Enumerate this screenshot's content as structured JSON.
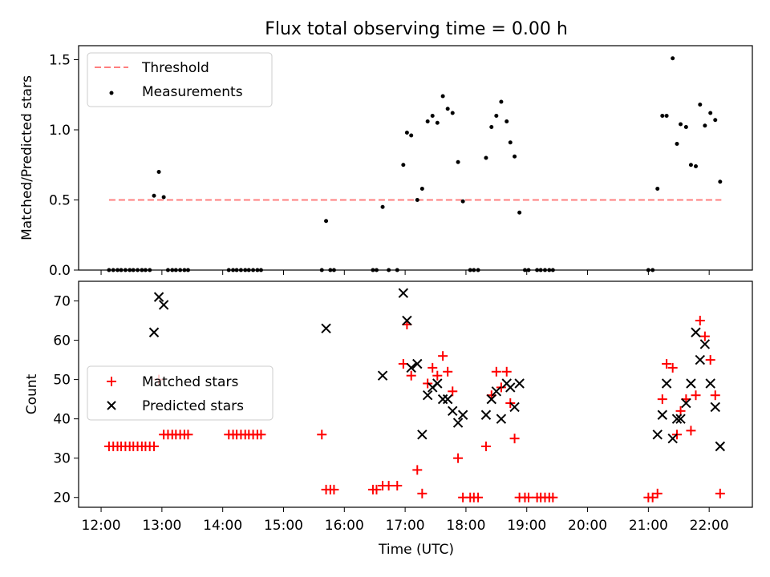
{
  "chart_data": {
    "title": "Flux total observing time = 0.00 h",
    "xlabel": "Time (UTC)",
    "x_ticks": [
      {
        "v": 12,
        "label": "12:00"
      },
      {
        "v": 13,
        "label": "13:00"
      },
      {
        "v": 14,
        "label": "14:00"
      },
      {
        "v": 15,
        "label": "15:00"
      },
      {
        "v": 16,
        "label": "16:00"
      },
      {
        "v": 17,
        "label": "17:00"
      },
      {
        "v": 18,
        "label": "18:00"
      },
      {
        "v": 19,
        "label": "19:00"
      },
      {
        "v": 20,
        "label": "20:00"
      },
      {
        "v": 21,
        "label": "21:00"
      },
      {
        "v": 22,
        "label": "22:00"
      }
    ],
    "xlim": [
      11.63,
      22.71
    ],
    "panels": [
      {
        "type": "scatter",
        "ylabel": "Matched/Predicted stars",
        "ylim": [
          0,
          1.6
        ],
        "yticks": [
          {
            "v": 0,
            "label": "0.0"
          },
          {
            "v": 0.5,
            "label": "0.5"
          },
          {
            "v": 1.0,
            "label": "1.0"
          },
          {
            "v": 1.5,
            "label": "1.5"
          }
        ],
        "legend": {
          "position": "top-left",
          "threshold_label": "Threshold",
          "measurements_label": "Measurements"
        },
        "threshold": {
          "y": 0.5,
          "x_start": 12.13,
          "x_end": 22.2,
          "color": "#ff7f7f"
        },
        "measurements": {
          "color": "#000000",
          "points": [
            [
              12.13,
              0
            ],
            [
              12.2,
              0
            ],
            [
              12.27,
              0
            ],
            [
              12.33,
              0
            ],
            [
              12.4,
              0
            ],
            [
              12.47,
              0
            ],
            [
              12.53,
              0
            ],
            [
              12.6,
              0
            ],
            [
              12.67,
              0
            ],
            [
              12.73,
              0
            ],
            [
              12.8,
              0
            ],
            [
              12.87,
              0.53
            ],
            [
              12.95,
              0.7
            ],
            [
              13.03,
              0.52
            ],
            [
              13.1,
              0
            ],
            [
              13.17,
              0
            ],
            [
              13.23,
              0
            ],
            [
              13.3,
              0
            ],
            [
              13.37,
              0
            ],
            [
              13.43,
              0
            ],
            [
              14.1,
              0
            ],
            [
              14.17,
              0
            ],
            [
              14.23,
              0
            ],
            [
              14.3,
              0
            ],
            [
              14.37,
              0
            ],
            [
              14.43,
              0
            ],
            [
              14.5,
              0
            ],
            [
              14.57,
              0
            ],
            [
              14.63,
              0
            ],
            [
              15.63,
              0
            ],
            [
              15.7,
              0.35
            ],
            [
              15.77,
              0
            ],
            [
              15.83,
              0
            ],
            [
              16.47,
              0
            ],
            [
              16.53,
              0
            ],
            [
              16.63,
              0.45
            ],
            [
              16.73,
              0
            ],
            [
              16.87,
              0
            ],
            [
              16.97,
              0.75
            ],
            [
              17.03,
              0.98
            ],
            [
              17.1,
              0.96
            ],
            [
              17.2,
              0.5
            ],
            [
              17.28,
              0.58
            ],
            [
              17.37,
              1.06
            ],
            [
              17.45,
              1.1
            ],
            [
              17.53,
              1.05
            ],
            [
              17.62,
              1.24
            ],
            [
              17.7,
              1.15
            ],
            [
              17.78,
              1.12
            ],
            [
              17.87,
              0.77
            ],
            [
              17.95,
              0.49
            ],
            [
              18.07,
              0
            ],
            [
              18.13,
              0
            ],
            [
              18.2,
              0
            ],
            [
              18.33,
              0.8
            ],
            [
              18.42,
              1.02
            ],
            [
              18.5,
              1.1
            ],
            [
              18.58,
              1.2
            ],
            [
              18.67,
              1.06
            ],
            [
              18.73,
              0.91
            ],
            [
              18.8,
              0.81
            ],
            [
              18.88,
              0.41
            ],
            [
              18.97,
              0
            ],
            [
              19.03,
              0
            ],
            [
              19.17,
              0
            ],
            [
              19.23,
              0
            ],
            [
              19.3,
              0
            ],
            [
              19.37,
              0
            ],
            [
              19.43,
              0
            ],
            [
              21.0,
              0
            ],
            [
              21.07,
              0
            ],
            [
              21.15,
              0.58
            ],
            [
              21.23,
              1.1
            ],
            [
              21.3,
              1.1
            ],
            [
              21.4,
              1.51
            ],
            [
              21.47,
              0.9
            ],
            [
              21.53,
              1.04
            ],
            [
              21.62,
              1.02
            ],
            [
              21.7,
              0.75
            ],
            [
              21.78,
              0.74
            ],
            [
              21.85,
              1.18
            ],
            [
              21.93,
              1.03
            ],
            [
              22.02,
              1.12
            ],
            [
              22.1,
              1.07
            ],
            [
              22.18,
              0.63
            ]
          ]
        }
      },
      {
        "type": "scatter",
        "ylabel": "Count",
        "ylim": [
          17.5,
          75
        ],
        "yticks": [
          {
            "v": 20,
            "label": "20"
          },
          {
            "v": 30,
            "label": "30"
          },
          {
            "v": 40,
            "label": "40"
          },
          {
            "v": 50,
            "label": "50"
          },
          {
            "v": 60,
            "label": "60"
          },
          {
            "v": 70,
            "label": "70"
          }
        ],
        "legend": {
          "position": "center-left"
        },
        "series": [
          {
            "name": "Matched stars",
            "marker": "plus",
            "color": "#ff0000",
            "points": [
              [
                12.13,
                33
              ],
              [
                12.2,
                33
              ],
              [
                12.27,
                33
              ],
              [
                12.33,
                33
              ],
              [
                12.4,
                33
              ],
              [
                12.47,
                33
              ],
              [
                12.53,
                33
              ],
              [
                12.6,
                33
              ],
              [
                12.67,
                33
              ],
              [
                12.73,
                33
              ],
              [
                12.8,
                33
              ],
              [
                12.87,
                33
              ],
              [
                12.95,
                50
              ],
              [
                13.03,
                36
              ],
              [
                13.1,
                36
              ],
              [
                13.17,
                36
              ],
              [
                13.23,
                36
              ],
              [
                13.3,
                36
              ],
              [
                13.37,
                36
              ],
              [
                13.43,
                36
              ],
              [
                14.1,
                36
              ],
              [
                14.17,
                36
              ],
              [
                14.23,
                36
              ],
              [
                14.3,
                36
              ],
              [
                14.37,
                36
              ],
              [
                14.43,
                36
              ],
              [
                14.5,
                36
              ],
              [
                14.57,
                36
              ],
              [
                14.63,
                36
              ],
              [
                15.63,
                36
              ],
              [
                15.7,
                22
              ],
              [
                15.77,
                22
              ],
              [
                15.83,
                22
              ],
              [
                16.47,
                22
              ],
              [
                16.53,
                22
              ],
              [
                16.63,
                23
              ],
              [
                16.73,
                23
              ],
              [
                16.87,
                23
              ],
              [
                16.97,
                54
              ],
              [
                17.03,
                64
              ],
              [
                17.1,
                51
              ],
              [
                17.2,
                27
              ],
              [
                17.28,
                21
              ],
              [
                17.37,
                49
              ],
              [
                17.45,
                53
              ],
              [
                17.53,
                51
              ],
              [
                17.62,
                56
              ],
              [
                17.7,
                52
              ],
              [
                17.78,
                47
              ],
              [
                17.87,
                30
              ],
              [
                17.95,
                20
              ],
              [
                18.07,
                20
              ],
              [
                18.13,
                20
              ],
              [
                18.2,
                20
              ],
              [
                18.33,
                33
              ],
              [
                18.42,
                46
              ],
              [
                18.5,
                52
              ],
              [
                18.58,
                48
              ],
              [
                18.67,
                52
              ],
              [
                18.73,
                44
              ],
              [
                18.8,
                35
              ],
              [
                18.88,
                20
              ],
              [
                18.97,
                20
              ],
              [
                19.03,
                20
              ],
              [
                19.17,
                20
              ],
              [
                19.23,
                20
              ],
              [
                19.3,
                20
              ],
              [
                19.37,
                20
              ],
              [
                19.43,
                20
              ],
              [
                21.0,
                20
              ],
              [
                21.07,
                20
              ],
              [
                21.15,
                21
              ],
              [
                21.23,
                45
              ],
              [
                21.3,
                54
              ],
              [
                21.4,
                53
              ],
              [
                21.47,
                36
              ],
              [
                21.53,
                42
              ],
              [
                21.62,
                45
              ],
              [
                21.7,
                37
              ],
              [
                21.78,
                46
              ],
              [
                21.85,
                65
              ],
              [
                21.93,
                61
              ],
              [
                22.02,
                55
              ],
              [
                22.1,
                46
              ],
              [
                22.18,
                21
              ]
            ]
          },
          {
            "name": "Predicted stars",
            "marker": "x",
            "color": "#000000",
            "points": [
              [
                12.87,
                62
              ],
              [
                12.95,
                71
              ],
              [
                13.03,
                69
              ],
              [
                15.7,
                63
              ],
              [
                16.63,
                51
              ],
              [
                16.97,
                72
              ],
              [
                17.03,
                65
              ],
              [
                17.1,
                53
              ],
              [
                17.2,
                54
              ],
              [
                17.28,
                36
              ],
              [
                17.37,
                46
              ],
              [
                17.45,
                48
              ],
              [
                17.53,
                49
              ],
              [
                17.62,
                45
              ],
              [
                17.7,
                45
              ],
              [
                17.78,
                42
              ],
              [
                17.87,
                39
              ],
              [
                17.95,
                41
              ],
              [
                18.33,
                41
              ],
              [
                18.42,
                45
              ],
              [
                18.5,
                47
              ],
              [
                18.58,
                40
              ],
              [
                18.67,
                49
              ],
              [
                18.73,
                48
              ],
              [
                18.8,
                43
              ],
              [
                18.88,
                49
              ],
              [
                21.15,
                36
              ],
              [
                21.23,
                41
              ],
              [
                21.3,
                49
              ],
              [
                21.4,
                35
              ],
              [
                21.47,
                40
              ],
              [
                21.53,
                40
              ],
              [
                21.62,
                44
              ],
              [
                21.7,
                49
              ],
              [
                21.78,
                62
              ],
              [
                21.85,
                55
              ],
              [
                21.93,
                59
              ],
              [
                22.02,
                49
              ],
              [
                22.1,
                43
              ],
              [
                22.18,
                33
              ]
            ]
          }
        ]
      }
    ]
  }
}
